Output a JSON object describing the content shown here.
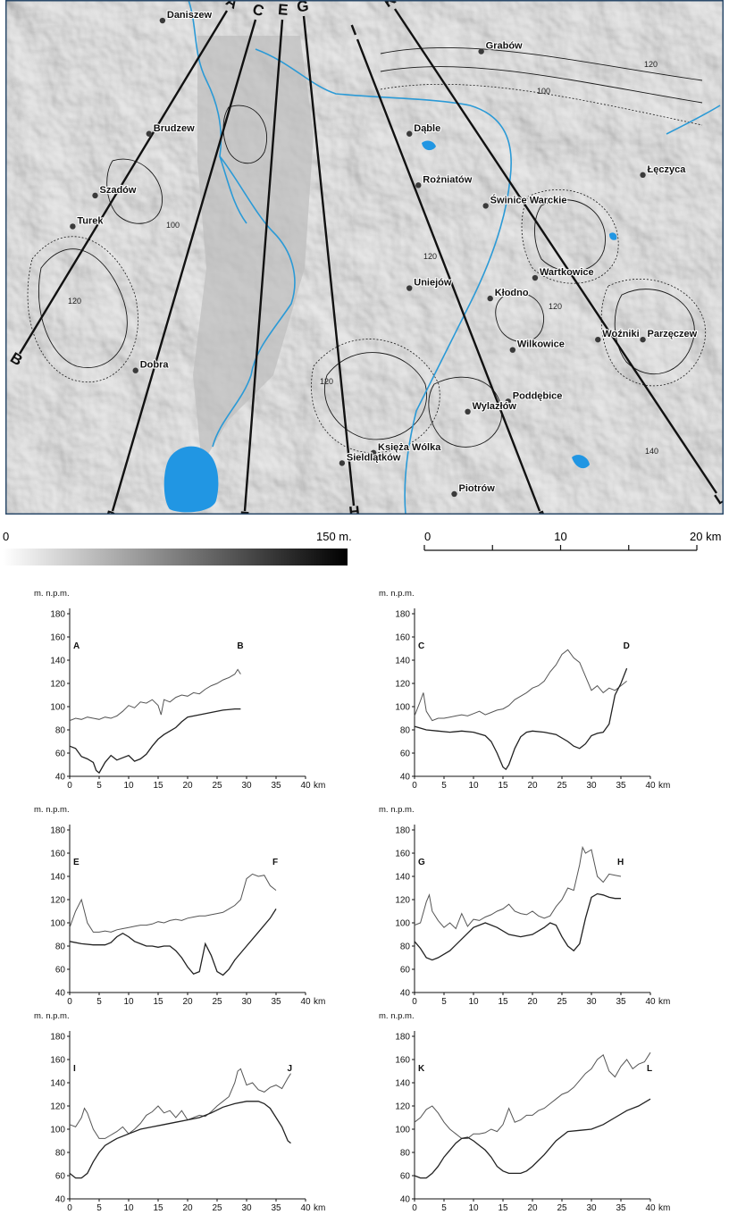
{
  "map": {
    "places": [
      {
        "name": "Daniszew",
        "x": 18.15,
        "y": 52.21
      },
      {
        "name": "Brudzew",
        "x": 18.12,
        "y": 52.1
      },
      {
        "name": "Grabów",
        "x": 18.86,
        "y": 52.18
      },
      {
        "name": "Dąble",
        "x": 18.7,
        "y": 52.1
      },
      {
        "name": "Łęczyca",
        "x": 19.22,
        "y": 52.06
      },
      {
        "name": "Rożniatów",
        "x": 18.72,
        "y": 52.05
      },
      {
        "name": "Świnice Warckie",
        "x": 18.87,
        "y": 52.03
      },
      {
        "name": "Szadów",
        "x": 18.0,
        "y": 52.04
      },
      {
        "name": "Turek",
        "x": 17.95,
        "y": 52.01
      },
      {
        "name": "Uniejów",
        "x": 18.7,
        "y": 51.95
      },
      {
        "name": "Kłodno",
        "x": 18.88,
        "y": 51.94
      },
      {
        "name": "Wartkowice",
        "x": 18.98,
        "y": 51.96
      },
      {
        "name": "Parzęczew",
        "x": 19.22,
        "y": 51.9
      },
      {
        "name": "Woźniki",
        "x": 19.12,
        "y": 51.9
      },
      {
        "name": "Wilkowice",
        "x": 18.93,
        "y": 51.89
      },
      {
        "name": "Dobra",
        "x": 18.09,
        "y": 51.87
      },
      {
        "name": "Poddębice",
        "x": 18.92,
        "y": 51.84
      },
      {
        "name": "Wylazłów",
        "x": 18.83,
        "y": 51.83
      },
      {
        "name": "Księża Wólka",
        "x": 18.62,
        "y": 51.79
      },
      {
        "name": "Sieldlątków",
        "x": 18.55,
        "y": 51.78
      },
      {
        "name": "Piotrów",
        "x": 18.8,
        "y": 51.75
      }
    ],
    "profile_lines": [
      {
        "start": "A",
        "end": "B"
      },
      {
        "start": "C",
        "end": "D"
      },
      {
        "start": "E",
        "end": "F"
      },
      {
        "start": "G",
        "end": "H"
      },
      {
        "start": "I",
        "end": "J"
      },
      {
        "start": "K",
        "end": "L"
      }
    ],
    "contour_labels": [
      "120",
      "100",
      "120",
      "120",
      "120",
      "100",
      "120",
      "140"
    ]
  },
  "elevation_scale": {
    "min_label": "0",
    "max_label": "150 m.",
    "min": 0,
    "max": 150
  },
  "distance_scale": {
    "ticks": [
      "0",
      "10",
      "20 km"
    ],
    "values": [
      0,
      5,
      10,
      15,
      20
    ],
    "max": 20
  },
  "chart_data": [
    {
      "type": "line",
      "ylabel": "m. n.p.m.",
      "start_label": "A",
      "end_label": "B",
      "xlim": [
        0,
        40
      ],
      "ylim": [
        40,
        180
      ],
      "xticks": [
        0,
        5,
        10,
        15,
        20,
        25,
        30,
        35,
        40
      ],
      "yticks": [
        40,
        60,
        80,
        100,
        120,
        140,
        160,
        180
      ],
      "xunit": "km",
      "series": [
        {
          "x": [
            0,
            1,
            2,
            3,
            4,
            5,
            6,
            7,
            8,
            9,
            10,
            11,
            12,
            13,
            14,
            15,
            15.5,
            16,
            17,
            18,
            19,
            20,
            21,
            22,
            23,
            24,
            25,
            26,
            27,
            28,
            28.5,
            29
          ],
          "y": [
            88,
            90,
            89,
            91,
            90,
            89,
            91,
            90,
            92,
            96,
            101,
            99,
            104,
            103,
            106,
            101,
            93,
            106,
            104,
            108,
            110,
            109,
            112,
            111,
            115,
            118,
            120,
            123,
            125,
            128,
            132,
            128
          ]
        },
        {
          "x": [
            0,
            1,
            2,
            3,
            4,
            4.5,
            5,
            6,
            7,
            8,
            9,
            10,
            11,
            12,
            13,
            14,
            15,
            16,
            17,
            18,
            19,
            20,
            22,
            24,
            26,
            28,
            29
          ],
          "y": [
            66,
            64,
            57,
            55,
            52,
            45,
            43,
            52,
            58,
            54,
            56,
            58,
            53,
            55,
            59,
            66,
            72,
            76,
            79,
            82,
            87,
            91,
            93,
            95,
            97,
            98,
            98
          ]
        }
      ]
    },
    {
      "type": "line",
      "ylabel": "m. n.p.m.",
      "start_label": "C",
      "end_label": "D",
      "xlim": [
        0,
        40
      ],
      "ylim": [
        40,
        180
      ],
      "xticks": [
        0,
        5,
        10,
        15,
        20,
        25,
        30,
        35,
        40
      ],
      "yticks": [
        40,
        60,
        80,
        100,
        120,
        140,
        160,
        180
      ],
      "xunit": "km",
      "series": [
        {
          "x": [
            0,
            1,
            1.5,
            2,
            3,
            4,
            5,
            6,
            7,
            8,
            9,
            10,
            11,
            12,
            13,
            14,
            15,
            16,
            17,
            18,
            19,
            20,
            21,
            22,
            23,
            24,
            25,
            26,
            27,
            28,
            29,
            30,
            31,
            32,
            33,
            34,
            35,
            36
          ],
          "y": [
            92,
            105,
            112,
            96,
            88,
            90,
            90,
            91,
            92,
            93,
            92,
            94,
            96,
            93,
            95,
            97,
            98,
            101,
            106,
            109,
            112,
            116,
            118,
            122,
            130,
            136,
            145,
            149,
            142,
            138,
            126,
            114,
            118,
            112,
            116,
            114,
            118,
            122
          ]
        },
        {
          "x": [
            0,
            2,
            4,
            6,
            8,
            10,
            12,
            13,
            14,
            15,
            15.5,
            16,
            17,
            18,
            19,
            20,
            22,
            24,
            26,
            27,
            28,
            29,
            30,
            31,
            32,
            33,
            34,
            35,
            36
          ],
          "y": [
            83,
            80,
            79,
            78,
            79,
            78,
            75,
            70,
            60,
            48,
            46,
            50,
            64,
            74,
            78,
            79,
            78,
            76,
            70,
            66,
            64,
            68,
            75,
            77,
            78,
            85,
            110,
            120,
            133
          ]
        }
      ]
    },
    {
      "type": "line",
      "ylabel": "m. n.p.m.",
      "start_label": "E",
      "end_label": "F",
      "xlim": [
        0,
        40
      ],
      "ylim": [
        40,
        180
      ],
      "xticks": [
        0,
        5,
        10,
        15,
        20,
        25,
        30,
        35,
        40
      ],
      "yticks": [
        40,
        60,
        80,
        100,
        120,
        140,
        160,
        180
      ],
      "xunit": "km",
      "series": [
        {
          "x": [
            0,
            1,
            2,
            3,
            4,
            5,
            6,
            7,
            8,
            9,
            10,
            11,
            12,
            13,
            14,
            15,
            16,
            17,
            18,
            19,
            20,
            21,
            22,
            23,
            24,
            25,
            26,
            27,
            28,
            29,
            30,
            31,
            32,
            33,
            34,
            35
          ],
          "y": [
            96,
            110,
            120,
            100,
            92,
            92,
            93,
            92,
            94,
            95,
            96,
            97,
            98,
            98,
            99,
            101,
            100,
            102,
            103,
            102,
            104,
            105,
            106,
            106,
            107,
            108,
            109,
            112,
            115,
            120,
            138,
            142,
            140,
            141,
            132,
            128
          ]
        },
        {
          "x": [
            0,
            2,
            4,
            6,
            7,
            8,
            9,
            10,
            11,
            12,
            13,
            14,
            15,
            16,
            17,
            18,
            19,
            20,
            21,
            22,
            23,
            24,
            25,
            26,
            27,
            28,
            30,
            32,
            34,
            35
          ],
          "y": [
            84,
            82,
            81,
            81,
            83,
            88,
            91,
            88,
            84,
            82,
            80,
            80,
            79,
            80,
            80,
            76,
            70,
            62,
            56,
            58,
            82,
            72,
            58,
            55,
            60,
            68,
            80,
            92,
            104,
            112
          ]
        }
      ]
    },
    {
      "type": "line",
      "ylabel": "m. n.p.m.",
      "start_label": "G",
      "end_label": "H",
      "xlim": [
        0,
        40
      ],
      "ylim": [
        40,
        180
      ],
      "xticks": [
        0,
        5,
        10,
        15,
        20,
        25,
        30,
        35,
        40
      ],
      "yticks": [
        40,
        60,
        80,
        100,
        120,
        140,
        160,
        180
      ],
      "xunit": "km",
      "series": [
        {
          "x": [
            0,
            1,
            2,
            2.5,
            3,
            4,
            5,
            6,
            7,
            8,
            9,
            10,
            11,
            12,
            13,
            14,
            15,
            16,
            17,
            18,
            19,
            20,
            21,
            22,
            23,
            24,
            25,
            26,
            27,
            28,
            28.5,
            29,
            30,
            31,
            32,
            33,
            34,
            35
          ],
          "y": [
            98,
            100,
            118,
            124,
            110,
            102,
            96,
            100,
            95,
            108,
            97,
            103,
            102,
            105,
            107,
            110,
            112,
            116,
            110,
            108,
            107,
            110,
            106,
            104,
            106,
            114,
            120,
            130,
            128,
            150,
            165,
            160,
            163,
            140,
            135,
            142,
            141,
            140
          ]
        },
        {
          "x": [
            0,
            1,
            2,
            3,
            4,
            6,
            8,
            10,
            12,
            14,
            16,
            18,
            20,
            22,
            23,
            24,
            25,
            26,
            27,
            28,
            29,
            30,
            31,
            32,
            33,
            34,
            35
          ],
          "y": [
            84,
            78,
            70,
            68,
            70,
            76,
            86,
            96,
            100,
            96,
            90,
            88,
            90,
            96,
            100,
            98,
            88,
            80,
            76,
            82,
            104,
            122,
            125,
            124,
            122,
            121,
            121
          ]
        }
      ]
    },
    {
      "type": "line",
      "ylabel": "m. n.p.m.",
      "start_label": "I",
      "end_label": "J",
      "xlim": [
        0,
        40
      ],
      "ylim": [
        40,
        180
      ],
      "xticks": [
        0,
        5,
        10,
        15,
        20,
        25,
        30,
        35,
        40
      ],
      "yticks": [
        40,
        60,
        80,
        100,
        120,
        140,
        160,
        180
      ],
      "xunit": "km",
      "series": [
        {
          "x": [
            0,
            1,
            2,
            2.5,
            3,
            4,
            5,
            6,
            7,
            8,
            9,
            10,
            11,
            12,
            13,
            14,
            15,
            16,
            17,
            18,
            19,
            20,
            21,
            22,
            23,
            24,
            25,
            26,
            27,
            28,
            28.5,
            29,
            30,
            31,
            32,
            33,
            34,
            35,
            36,
            37,
            37.5
          ],
          "y": [
            104,
            102,
            110,
            118,
            114,
            100,
            92,
            92,
            95,
            98,
            102,
            96,
            100,
            105,
            112,
            115,
            120,
            114,
            116,
            110,
            116,
            108,
            110,
            112,
            111,
            115,
            120,
            124,
            128,
            140,
            150,
            152,
            138,
            140,
            134,
            132,
            136,
            138,
            135,
            144,
            148
          ]
        },
        {
          "x": [
            0,
            1,
            2,
            3,
            4,
            5,
            6,
            8,
            10,
            12,
            14,
            16,
            18,
            20,
            22,
            24,
            26,
            28,
            30,
            32,
            33,
            34,
            35,
            36,
            37,
            37.5
          ],
          "y": [
            62,
            58,
            58,
            62,
            72,
            80,
            86,
            92,
            96,
            100,
            102,
            104,
            106,
            108,
            110,
            114,
            119,
            122,
            124,
            124,
            122,
            118,
            110,
            102,
            90,
            88
          ]
        }
      ]
    },
    {
      "type": "line",
      "ylabel": "m. n.p.m.",
      "start_label": "K",
      "end_label": "L",
      "xlim": [
        0,
        40
      ],
      "ylim": [
        40,
        180
      ],
      "xticks": [
        0,
        5,
        10,
        15,
        20,
        25,
        30,
        35,
        40
      ],
      "yticks": [
        40,
        60,
        80,
        100,
        120,
        140,
        160,
        180
      ],
      "xunit": "km",
      "series": [
        {
          "x": [
            0,
            1,
            2,
            3,
            4,
            5,
            6,
            7,
            8,
            9,
            10,
            11,
            12,
            13,
            14,
            15,
            16,
            17,
            18,
            19,
            20,
            21,
            22,
            23,
            24,
            25,
            26,
            27,
            28,
            29,
            30,
            31,
            32,
            33,
            34,
            35,
            36,
            37,
            38,
            39,
            40
          ],
          "y": [
            106,
            110,
            117,
            120,
            114,
            106,
            100,
            96,
            92,
            92,
            96,
            96,
            97,
            100,
            98,
            104,
            118,
            106,
            108,
            112,
            112,
            116,
            118,
            122,
            126,
            130,
            132,
            136,
            142,
            148,
            152,
            160,
            164,
            150,
            145,
            154,
            160,
            152,
            156,
            158,
            166
          ]
        },
        {
          "x": [
            0,
            1,
            2,
            3,
            4,
            5,
            6,
            7,
            8,
            9,
            10,
            11,
            12,
            13,
            14,
            15,
            16,
            17,
            18,
            19,
            20,
            22,
            24,
            26,
            28,
            30,
            32,
            34,
            36,
            38,
            40
          ],
          "y": [
            60,
            58,
            58,
            62,
            68,
            76,
            82,
            88,
            92,
            93,
            90,
            86,
            82,
            76,
            68,
            64,
            62,
            62,
            62,
            64,
            68,
            78,
            90,
            98,
            99,
            100,
            104,
            110,
            116,
            120,
            126
          ]
        }
      ]
    }
  ]
}
